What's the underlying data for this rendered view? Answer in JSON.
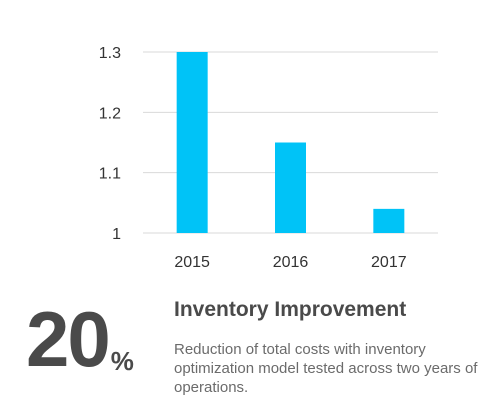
{
  "colors": {
    "bar": "#00c3f7",
    "grid": "#d9d9d9",
    "text_dark": "#4a4a4a",
    "text_muted": "#6b6b6b"
  },
  "chart_data": {
    "type": "bar",
    "categories": [
      "2015",
      "2016",
      "2017"
    ],
    "values": [
      1.3,
      1.15,
      1.04
    ],
    "title": "",
    "xlabel": "",
    "ylabel": "",
    "ylim": [
      1,
      1.3
    ],
    "yticks": [
      "1",
      "1.1",
      "1.2",
      "1.3"
    ],
    "grid": true,
    "legend": "none"
  },
  "stat": {
    "value": "20",
    "unit": "%"
  },
  "headline": "Inventory Improvement",
  "description": "Reduction of total costs with inventory optimization model tested across two years of operations."
}
